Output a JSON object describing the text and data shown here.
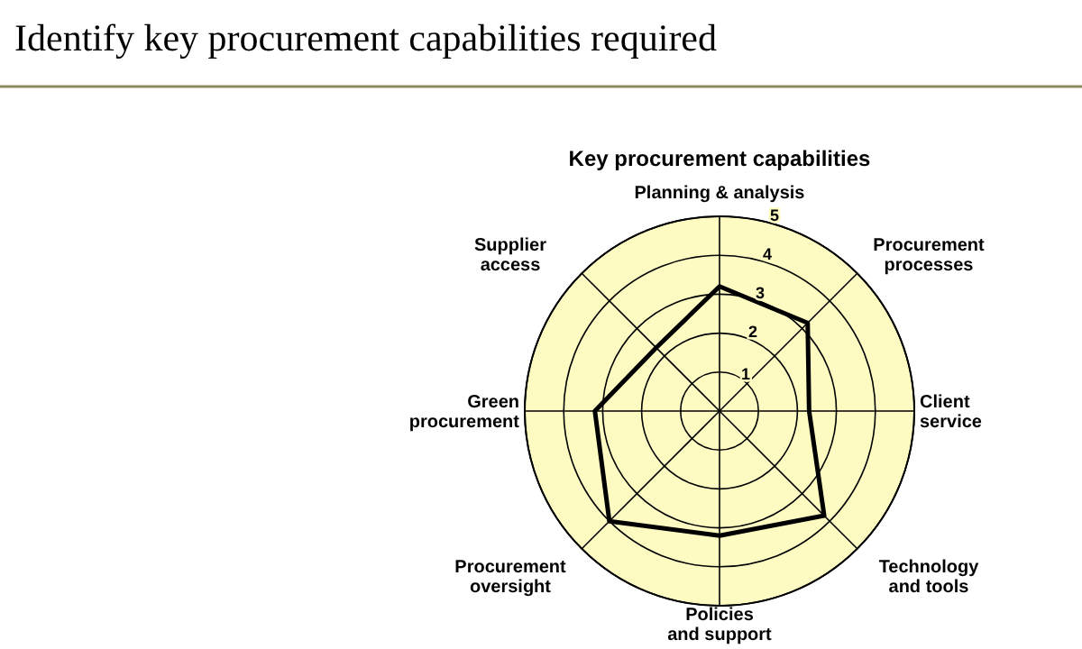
{
  "chart_data": {
    "type": "radar",
    "title": "Identify key procurement capabilities required",
    "subtitle": "Key procurement capabilities",
    "categories": [
      "Planning & analysis",
      "Procurement processes",
      "Client service",
      "Technology and tools",
      "Policies and support",
      "Procurement oversight",
      "Green procurement",
      "Supplier access"
    ],
    "series": [
      {
        "color": "#000000",
        "values": [
          3.2,
          3.2,
          2.3,
          3.8,
          3.2,
          4,
          3.2,
          2.3
        ]
      }
    ],
    "ylim": [
      0,
      5
    ],
    "yticks": [
      1,
      2,
      3,
      4,
      5
    ],
    "grid": true,
    "marker": "none",
    "line_style": "solid"
  }
}
